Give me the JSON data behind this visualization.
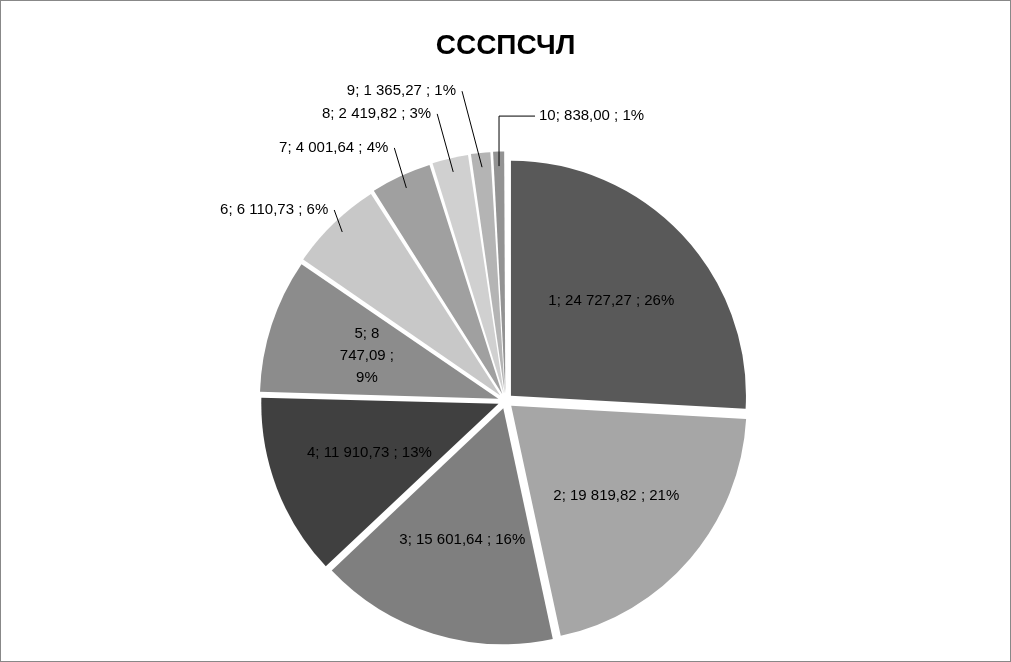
{
  "chart_data": {
    "type": "pie",
    "title": "СССПСЧЛ",
    "categories": [
      "1",
      "2",
      "3",
      "4",
      "5",
      "6",
      "7",
      "8",
      "9",
      "10"
    ],
    "values": [
      24727.27,
      19819.82,
      15601.64,
      11910.73,
      8747.09,
      6110.73,
      4001.64,
      2419.82,
      1365.27,
      838.0
    ],
    "colors": [
      "#595959",
      "#a6a6a6",
      "#7f7f7f",
      "#404040",
      "#8c8c8c",
      "#c8c8c8",
      "#a0a0a0",
      "#d0d0d0",
      "#b4b4b4",
      "#939393"
    ],
    "value_labels": [
      "24 727,27 ; 26%",
      "19 819,82 ; 21%",
      "15 601,64 ; 16%",
      "11 910,73 ; 13%",
      "8 747,09 ; 9%",
      "6 110,73 ; 6%",
      "4 001,64 ; 4%",
      "2 419,82 ; 3%",
      "1 365,27 ; 1%",
      "838,00 ; 1%"
    ]
  }
}
